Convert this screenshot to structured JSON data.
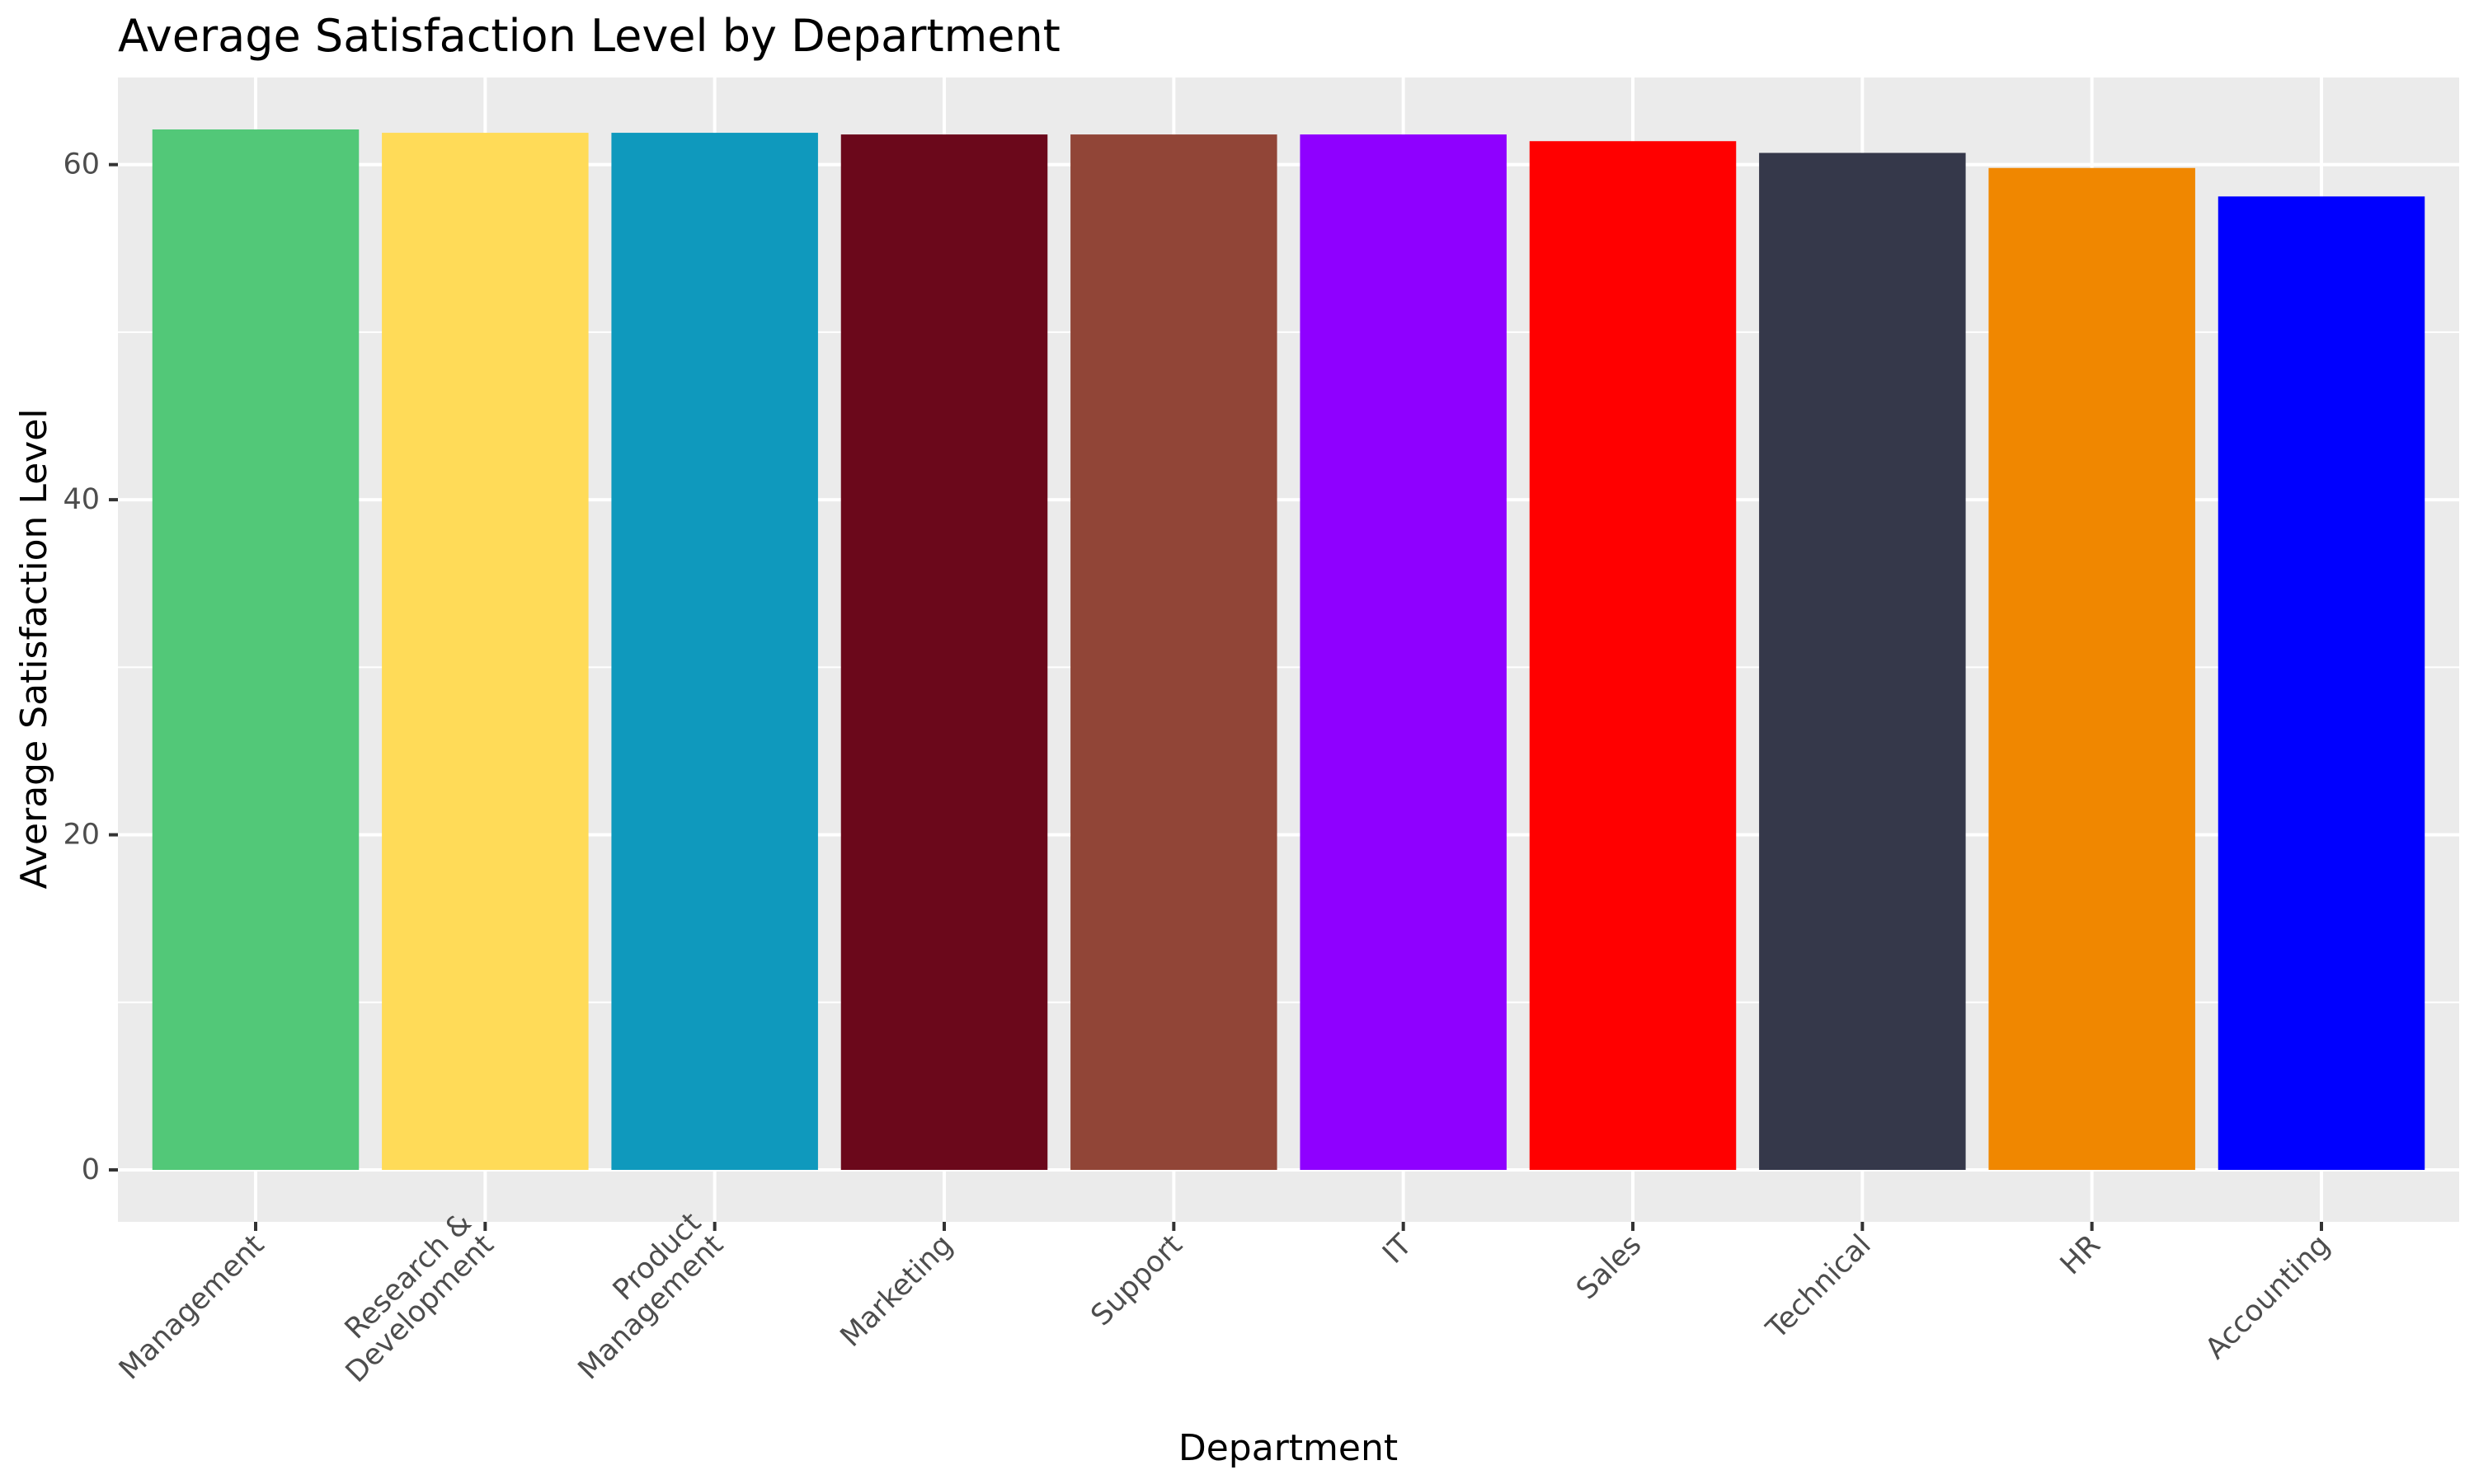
{
  "chart_data": {
    "type": "bar",
    "title": "Average Satisfaction Level by Department",
    "xlabel": "Department",
    "ylabel": "Average Satisfaction Level",
    "categories": [
      "Management",
      "Research & Development",
      "Product Management",
      "Marketing",
      "Support",
      "IT",
      "Sales",
      "Technical",
      "HR",
      "Accounting"
    ],
    "category_label_lines": [
      [
        "Management"
      ],
      [
        "Research &",
        "Development"
      ],
      [
        "Product",
        "Management"
      ],
      [
        "Marketing"
      ],
      [
        "Support"
      ],
      [
        "IT"
      ],
      [
        "Sales"
      ],
      [
        "Technical"
      ],
      [
        "HR"
      ],
      [
        "Accounting"
      ]
    ],
    "values": [
      62.1,
      61.9,
      61.9,
      61.8,
      61.8,
      61.8,
      61.4,
      60.7,
      59.8,
      58.1
    ],
    "colors": [
      "#52c878",
      "#ffdb58",
      "#0f99bd",
      "#6b081b",
      "#914537",
      "#8f00ff",
      "#ff0000",
      "#35384a",
      "#f08700",
      "#0000ff"
    ],
    "ylim": [
      -3.1,
      65.2
    ],
    "yticks": [
      0,
      20,
      40,
      60
    ],
    "ytick_labels": [
      "0",
      "20",
      "40",
      "60"
    ],
    "grid": true,
    "legend": "none",
    "panel_background": "#ebebeb",
    "grid_color": "#ffffff"
  }
}
